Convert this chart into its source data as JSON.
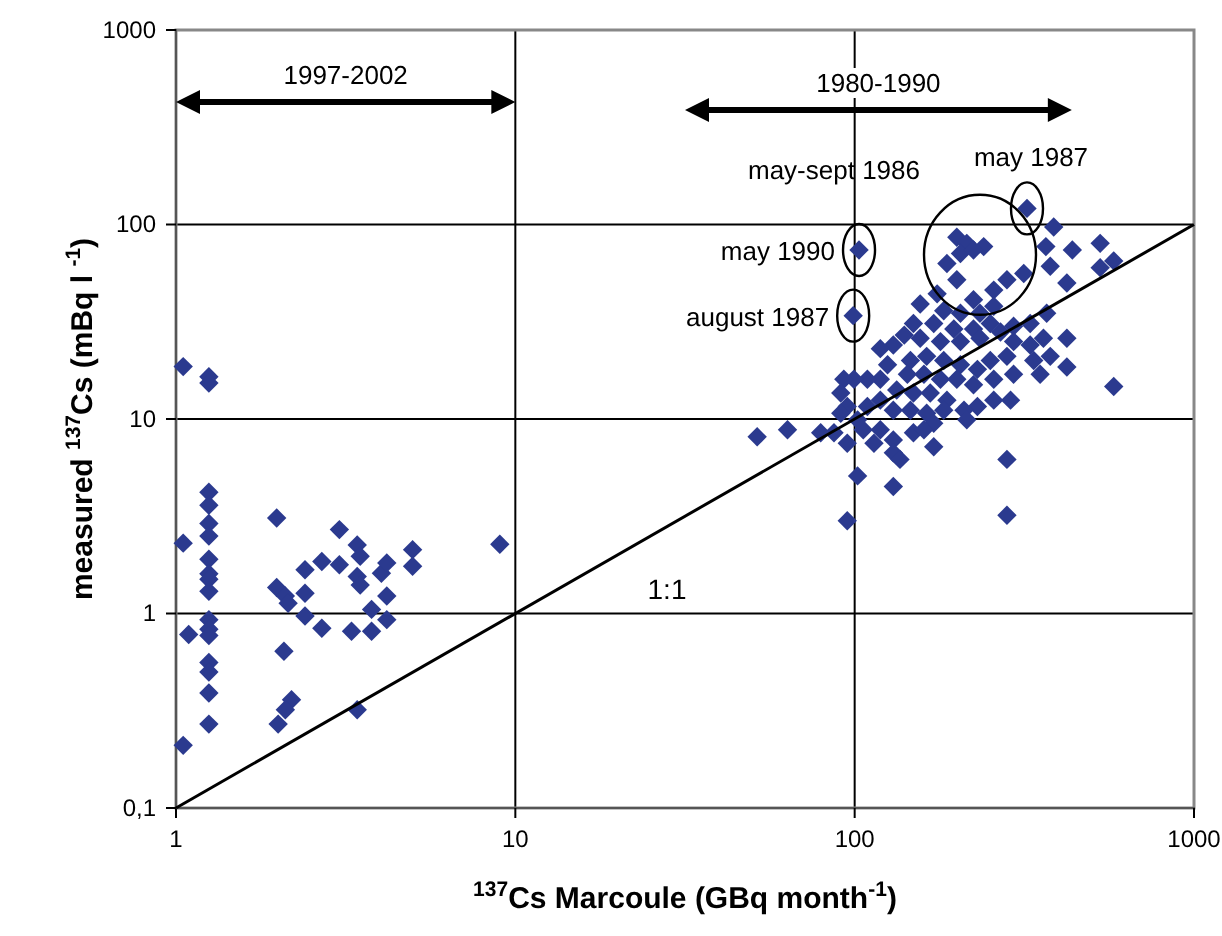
{
  "chart_data": {
    "type": "scatter",
    "log": "xy",
    "grid": true,
    "legend": false,
    "xlabel": "$^{137}$Cs Marcoule (GBq month$^{-1}$)",
    "ylabel": "measured  $^{137}$Cs  (mBq l $^{-1}$)",
    "xlim": [
      1,
      1000
    ],
    "xticks": [
      1,
      10,
      100,
      1000
    ],
    "ylim": [
      0.1,
      1000
    ],
    "yticks": [
      {
        "value": 0.1,
        "label": "0,1"
      },
      1,
      10,
      100,
      1000
    ],
    "annotations": [
      "1997-2002",
      "1980-1990",
      {
        "text": "may-sept 1986",
        "x": 210,
        "y": 75
      },
      {
        "text": "may 1987",
        "x": 322,
        "y": 121
      },
      {
        "text": "may 1990",
        "x": 103,
        "y": 74
      },
      {
        "text": "august 1987",
        "x": 99,
        "y": 34
      }
    ],
    "series": [
      {
        "marker": "diamond",
        "color": "#2b3a8f",
        "x": [
          1.05,
          1.25,
          1.25,
          1.25,
          1.25,
          1.25,
          1.25,
          1.05,
          1.25,
          1.25,
          1.25,
          1.25,
          1.25,
          1.25,
          1.25,
          1.09,
          1.25,
          1.25,
          1.25,
          1.25,
          1.05,
          1.98,
          1.98,
          2.1,
          2.14,
          2.4,
          2.4,
          2.4,
          2.08,
          2.19,
          2.1,
          2.0,
          2.69,
          2.69,
          3.03,
          3.03,
          3.42,
          3.49,
          3.42,
          3.49,
          3.29,
          3.42,
          3.77,
          3.77,
          4.03,
          4.18,
          4.18,
          4.18,
          4.98,
          4.98,
          9.0,
          103,
          99,
          322,
          200,
          214,
          240,
          205,
          187,
          224,
          366,
          377,
          315,
          281,
          257,
          224,
          200,
          175,
          156,
          183,
          205,
          234,
          257,
          251,
          224,
          196,
          171,
          149,
          140,
          156,
          179,
          205,
          234,
          269,
          294,
          329,
          368,
          360,
          329,
          294,
          281,
          251,
          230,
          205,
          183,
          163,
          146,
          130,
          119,
          125,
          143,
          160,
          179,
          200,
          224,
          257,
          294,
          337,
          377,
          352,
          288,
          257,
          230,
          210,
          187,
          167,
          149,
          133,
          119,
          109,
          99.5,
          92.9,
          91,
          95.1,
          109,
          119,
          130,
          146,
          163,
          171,
          183,
          214,
          149,
          130,
          119,
          106,
          102,
          91,
          86.9,
          95.1,
          114,
          130,
          136,
          160,
          171,
          102,
          130,
          95.1,
          281,
          281,
          63.4,
          51.6,
          79.4,
          386,
          438,
          529,
          580,
          529,
          422,
          422,
          422,
          580
        ],
        "values": [
          18.6,
          16.5,
          15.3,
          4.2,
          3.6,
          2.9,
          2.5,
          2.3,
          1.9,
          1.6,
          1.5,
          1.3,
          0.93,
          0.83,
          0.77,
          0.78,
          0.56,
          0.5,
          0.39,
          0.27,
          0.21,
          3.1,
          1.36,
          1.23,
          1.13,
          1.68,
          1.27,
          0.97,
          0.64,
          0.36,
          0.32,
          0.27,
          1.85,
          0.84,
          2.7,
          1.78,
          2.25,
          1.97,
          1.55,
          1.4,
          0.81,
          0.32,
          1.05,
          0.81,
          1.61,
          1.82,
          1.23,
          0.93,
          2.13,
          1.75,
          2.27,
          74,
          34,
          121,
          86,
          80,
          77,
          71,
          63,
          74,
          77,
          61,
          56,
          52,
          46,
          41,
          52,
          44,
          39,
          36,
          35,
          35,
          38,
          31,
          29,
          29,
          31,
          31,
          27,
          26,
          25,
          25,
          26,
          28,
          30,
          31,
          35,
          26,
          24,
          25,
          21,
          20,
          18,
          19,
          20,
          21,
          20,
          24,
          23,
          19,
          17,
          17,
          16,
          16,
          15,
          16,
          17,
          20,
          21,
          17,
          12.5,
          12.5,
          11.6,
          11.1,
          12.5,
          13.6,
          13.6,
          14.1,
          16,
          16,
          16,
          16,
          13.6,
          11.6,
          11.6,
          12.5,
          11.1,
          11.1,
          10.7,
          9.5,
          11.1,
          9.9,
          8.5,
          7.8,
          8.8,
          8.8,
          9.9,
          10.7,
          8.5,
          7.5,
          7.5,
          6.7,
          6.2,
          8.8,
          7.2,
          5.1,
          4.5,
          3.0,
          6.2,
          3.2,
          8.8,
          8.1,
          8.5,
          97,
          74,
          80,
          65,
          60,
          50,
          26,
          18.5,
          14.7
        ]
      },
      {
        "type": "line",
        "marker": "none",
        "name": "1:1",
        "color": "#000000",
        "x": [
          1,
          1000
        ],
        "values": [
          0.1,
          100
        ]
      }
    ]
  }
}
